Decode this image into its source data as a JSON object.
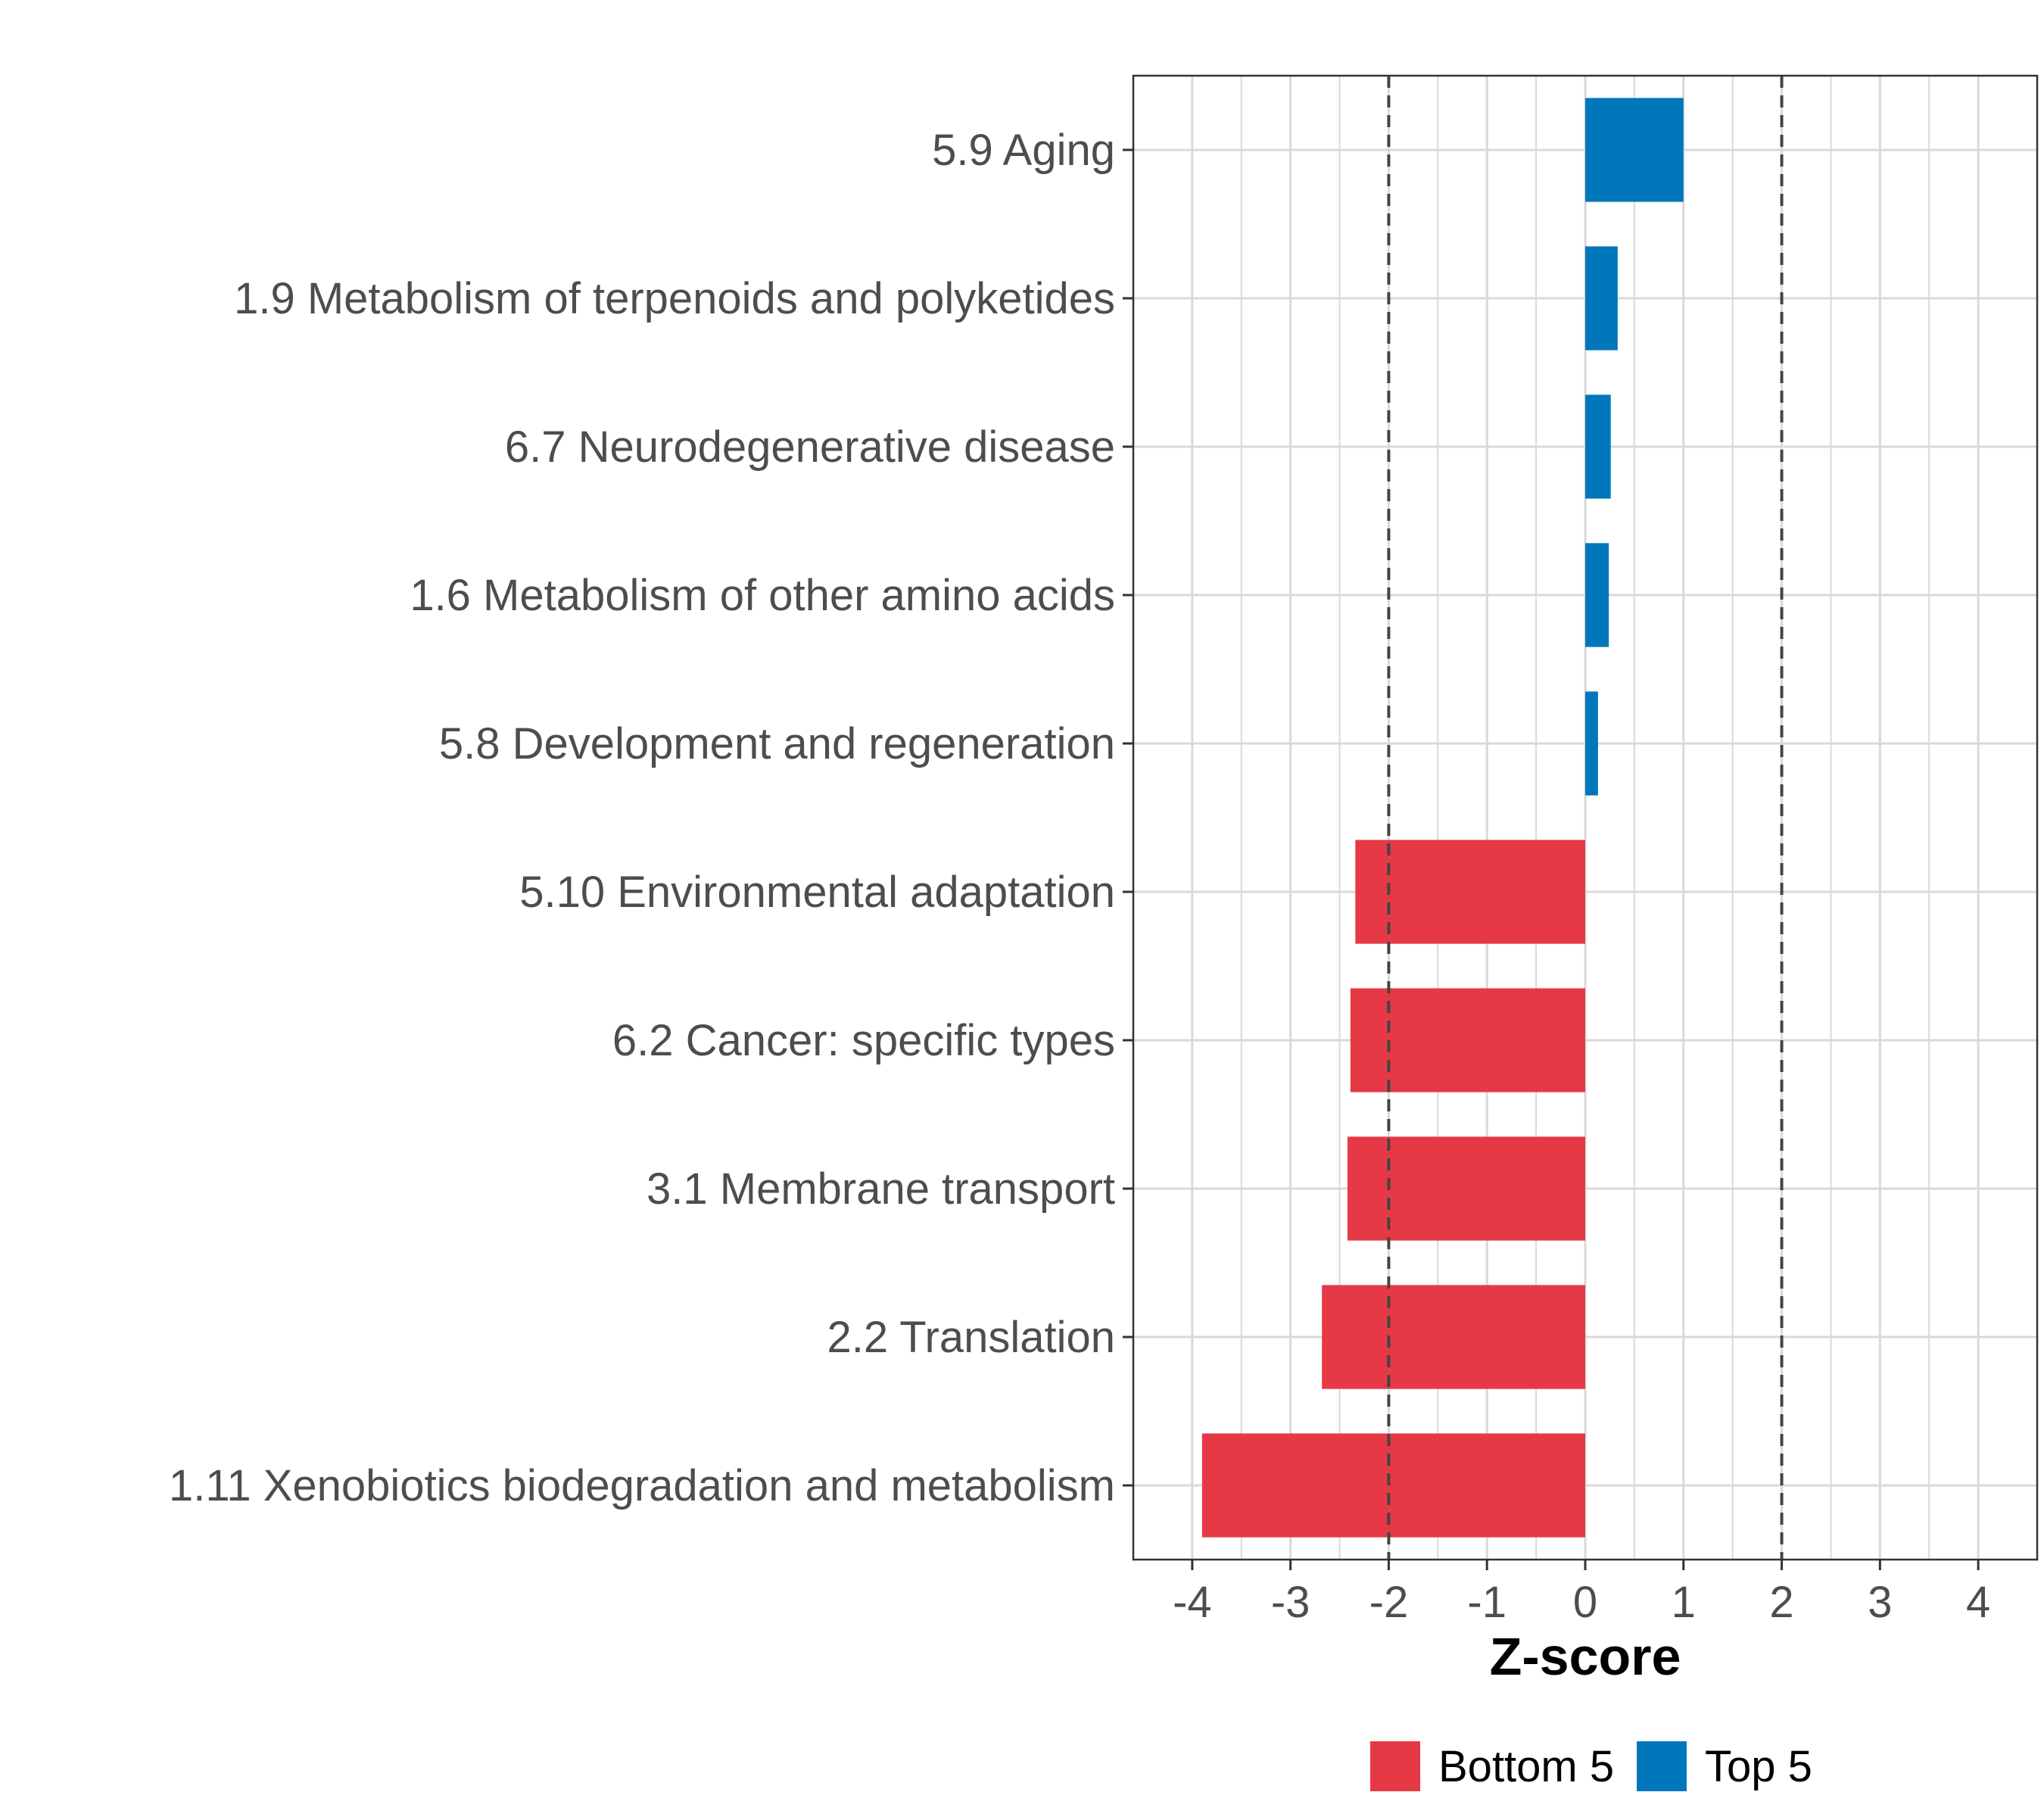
{
  "chart_data": {
    "type": "bar",
    "orientation": "horizontal",
    "title": "",
    "xlabel": "Z-score",
    "ylabel": "",
    "xlim": [
      -4.6,
      4.6
    ],
    "xticks": [
      -4,
      -3,
      -2,
      -1,
      0,
      1,
      2,
      3,
      4
    ],
    "xtick_labels": [
      "-4",
      "-3",
      "-2",
      "-1",
      "0",
      "1",
      "2",
      "3",
      "4"
    ],
    "grid": true,
    "reference_lines": [
      -2,
      2
    ],
    "categories": [
      "5.9 Aging",
      "1.9 Metabolism of terpenoids and polyketides",
      "6.7 Neurodegenerative disease",
      "1.6 Metabolism of other amino acids",
      "5.8 Development and regeneration",
      "5.10 Environmental adaptation",
      "6.2 Cancer: specific types",
      "3.1 Membrane transport",
      "2.2 Translation",
      "1.11 Xenobiotics biodegradation and metabolism"
    ],
    "values": [
      1.0,
      0.33,
      0.26,
      0.24,
      0.13,
      -2.34,
      -2.39,
      -2.42,
      -2.68,
      -3.9
    ],
    "groups": [
      "Top 5",
      "Top 5",
      "Top 5",
      "Top 5",
      "Top 5",
      "Bottom 5",
      "Bottom 5",
      "Bottom 5",
      "Bottom 5",
      "Bottom 5"
    ],
    "legend": {
      "position": "bottom",
      "entries": [
        {
          "label": "Bottom 5",
          "color": "#E63946"
        },
        {
          "label": "Top 5",
          "color": "#0077BB"
        }
      ]
    },
    "colors": {
      "Top 5": "#0077BB",
      "Bottom 5": "#E63946",
      "grid": "#d9d9d9",
      "reference_line": "#444444",
      "panel_border": "#333333"
    }
  }
}
